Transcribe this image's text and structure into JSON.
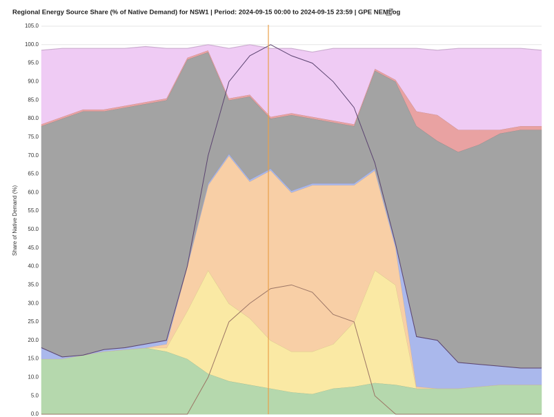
{
  "chart_data": {
    "type": "stacked-area",
    "title": "Regional Energy Source Share (% of Native Demand) for NSW1 | Period: 2024-09-15 00:00 to 2024-09-15 23:59 | GPE NEMLog",
    "y_label": "Share of Native Demand (%)",
    "ylim": [
      0,
      105
    ],
    "yticks": [
      {
        "value": 0,
        "label": "0.0"
      },
      {
        "value": 5,
        "label": "5.0"
      },
      {
        "value": 10,
        "label": "10.0"
      },
      {
        "value": 15,
        "label": "15.0"
      },
      {
        "value": 20,
        "label": "20.0"
      },
      {
        "value": 25,
        "label": "25.0"
      },
      {
        "value": 30,
        "label": "30.0"
      },
      {
        "value": 35,
        "label": "35.0"
      },
      {
        "value": 40,
        "label": "40.0"
      },
      {
        "value": 45,
        "label": "45.0"
      },
      {
        "value": 50,
        "label": "50.0"
      },
      {
        "value": 55,
        "label": "55.0"
      },
      {
        "value": 60,
        "label": "60.0"
      },
      {
        "value": 65,
        "label": "65.0"
      },
      {
        "value": 70,
        "label": "70.0"
      },
      {
        "value": 75,
        "label": "75.0"
      },
      {
        "value": 80,
        "label": "80.0"
      },
      {
        "value": 85,
        "label": "85.0"
      },
      {
        "value": 90,
        "label": "90.0"
      },
      {
        "value": 95,
        "label": "95.0"
      },
      {
        "value": 100,
        "label": "100.0"
      },
      {
        "value": 105,
        "label": "105.0"
      }
    ],
    "grid": true,
    "series": [
      {
        "color": "#b5d8ad",
        "values": [
          15,
          15,
          16,
          17,
          17.5,
          18,
          17,
          15,
          11,
          9,
          8,
          7,
          6,
          5.5,
          7,
          7.5,
          8.5,
          8,
          7,
          7,
          7,
          7.5,
          8,
          8,
          8
        ]
      },
      {
        "color": "#fae9a4",
        "values": [
          0,
          0,
          0,
          0,
          0,
          0,
          1,
          13,
          28,
          21,
          18,
          13,
          11,
          11.5,
          12,
          17.5,
          30.5,
          27,
          0,
          0,
          0,
          0,
          0,
          0,
          0
        ]
      },
      {
        "color": "#f8cfa6",
        "values": [
          0,
          0,
          0,
          0,
          0,
          0,
          1,
          12,
          23,
          40,
          37,
          46,
          43,
          45,
          43,
          37,
          27,
          10,
          0.5,
          0,
          0,
          0,
          0,
          0,
          0
        ]
      },
      {
        "color": "#aab8ec",
        "values": [
          3,
          0.5,
          0,
          0.5,
          0.5,
          1,
          1,
          0.5,
          0.5,
          0.5,
          0.5,
          0.5,
          0.5,
          0.5,
          0.5,
          0.5,
          0.5,
          1,
          13.5,
          13,
          7,
          6,
          5,
          4.5,
          4.5
        ]
      },
      {
        "color": "#a3a3a3",
        "values": [
          60,
          64.5,
          66,
          64.5,
          65,
          65,
          65,
          55.5,
          35.5,
          14.5,
          22.5,
          13.5,
          20.5,
          17.5,
          16.5,
          15.5,
          26.5,
          44,
          57,
          54,
          57,
          59.5,
          63,
          64.5,
          64.5
        ]
      },
      {
        "color": "#e9a2a2",
        "values": [
          0.5,
          0.5,
          0.5,
          0.5,
          0.5,
          0.5,
          0.5,
          0.5,
          0.5,
          0.5,
          0.5,
          0.5,
          0.5,
          0.5,
          0.5,
          0.5,
          0.5,
          0.5,
          4,
          7,
          6,
          4,
          1,
          1,
          1
        ]
      },
      {
        "color": "#efcbf4",
        "values": [
          20,
          18.5,
          16.5,
          16.5,
          15.5,
          15,
          13.5,
          2.5,
          1.5,
          13.5,
          13.5,
          18.5,
          17.5,
          17.5,
          19.5,
          20.5,
          5.5,
          8.5,
          17,
          17.5,
          22,
          22,
          22,
          21,
          20.5
        ]
      }
    ],
    "lines": [
      {
        "color": "#5b4470",
        "values": [
          18,
          15.5,
          16,
          17.5,
          18,
          19,
          20,
          40,
          70,
          90,
          97,
          100,
          97,
          95,
          90,
          83,
          68,
          46,
          21,
          20,
          14,
          13.5,
          13,
          12.5,
          12.5
        ]
      },
      {
        "color": "#9b7565",
        "values": [
          0,
          0,
          0,
          0,
          0,
          0,
          0,
          0,
          10,
          25,
          30,
          34,
          35,
          33,
          27,
          25,
          5,
          0,
          0,
          0,
          0,
          0,
          0,
          0,
          0
        ]
      }
    ]
  }
}
